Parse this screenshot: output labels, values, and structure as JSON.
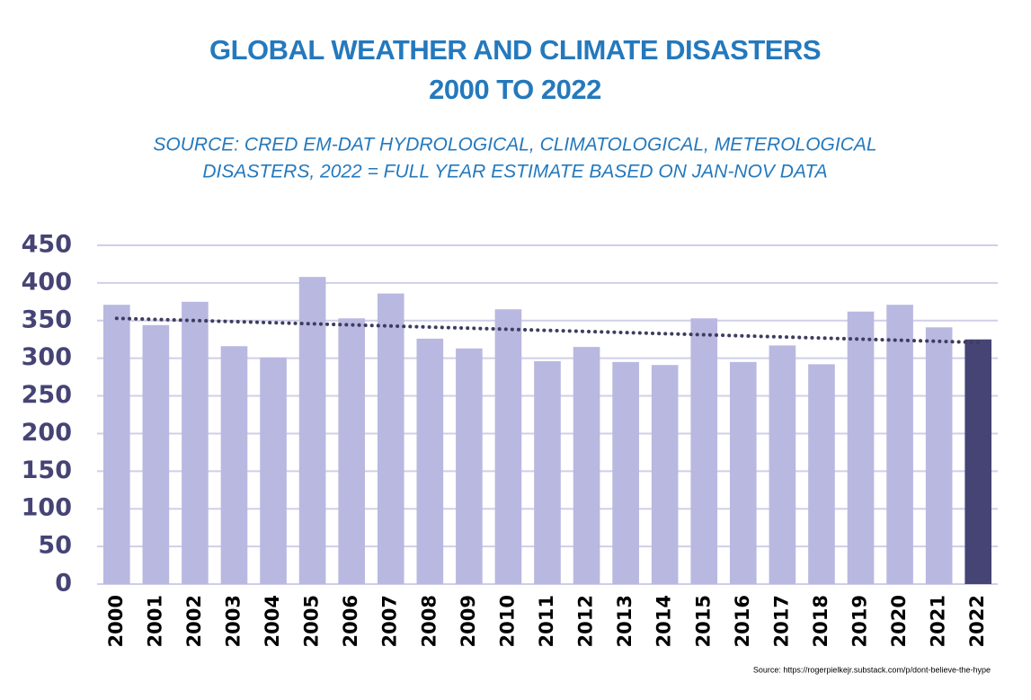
{
  "chart_data": {
    "type": "bar",
    "title": [
      "GLOBAL WEATHER AND CLIMATE DISASTERS",
      "2000 TO 2022"
    ],
    "subtitle": [
      "SOURCE: CRED EM-DAT HYDROLOGICAL, CLIMATOLOGICAL, METEROLOGICAL",
      "DISASTERS, 2022 = FULL YEAR ESTIMATE BASED ON JAN-NOV DATA"
    ],
    "source": "Source:  https://rogerpielkejr.substack.com/p/dont-believe-the-hype",
    "categories": [
      "2000",
      "2001",
      "2002",
      "2003",
      "2004",
      "2005",
      "2006",
      "2007",
      "2008",
      "2009",
      "2010",
      "2011",
      "2012",
      "2013",
      "2014",
      "2015",
      "2016",
      "2017",
      "2018",
      "2019",
      "2020",
      "2021",
      "2022"
    ],
    "values": [
      371,
      344,
      375,
      316,
      301,
      408,
      353,
      386,
      326,
      313,
      365,
      296,
      315,
      295,
      291,
      353,
      295,
      317,
      292,
      362,
      371,
      341,
      325
    ],
    "colors": [
      "#b9b8e1",
      "#b9b8e1",
      "#b9b8e1",
      "#b9b8e1",
      "#b9b8e1",
      "#b9b8e1",
      "#b9b8e1",
      "#b9b8e1",
      "#b9b8e1",
      "#b9b8e1",
      "#b9b8e1",
      "#b9b8e1",
      "#b9b8e1",
      "#b9b8e1",
      "#b9b8e1",
      "#b9b8e1",
      "#b9b8e1",
      "#b9b8e1",
      "#b9b8e1",
      "#b9b8e1",
      "#b9b8e1",
      "#b9b8e1",
      "#454475"
    ],
    "trend": [
      353,
      321
    ],
    "trend_color": "#3e3d5e",
    "ylim": [
      0,
      450
    ],
    "yticks": [
      0,
      50,
      100,
      150,
      200,
      250,
      300,
      350,
      400,
      450
    ],
    "grid": true
  }
}
